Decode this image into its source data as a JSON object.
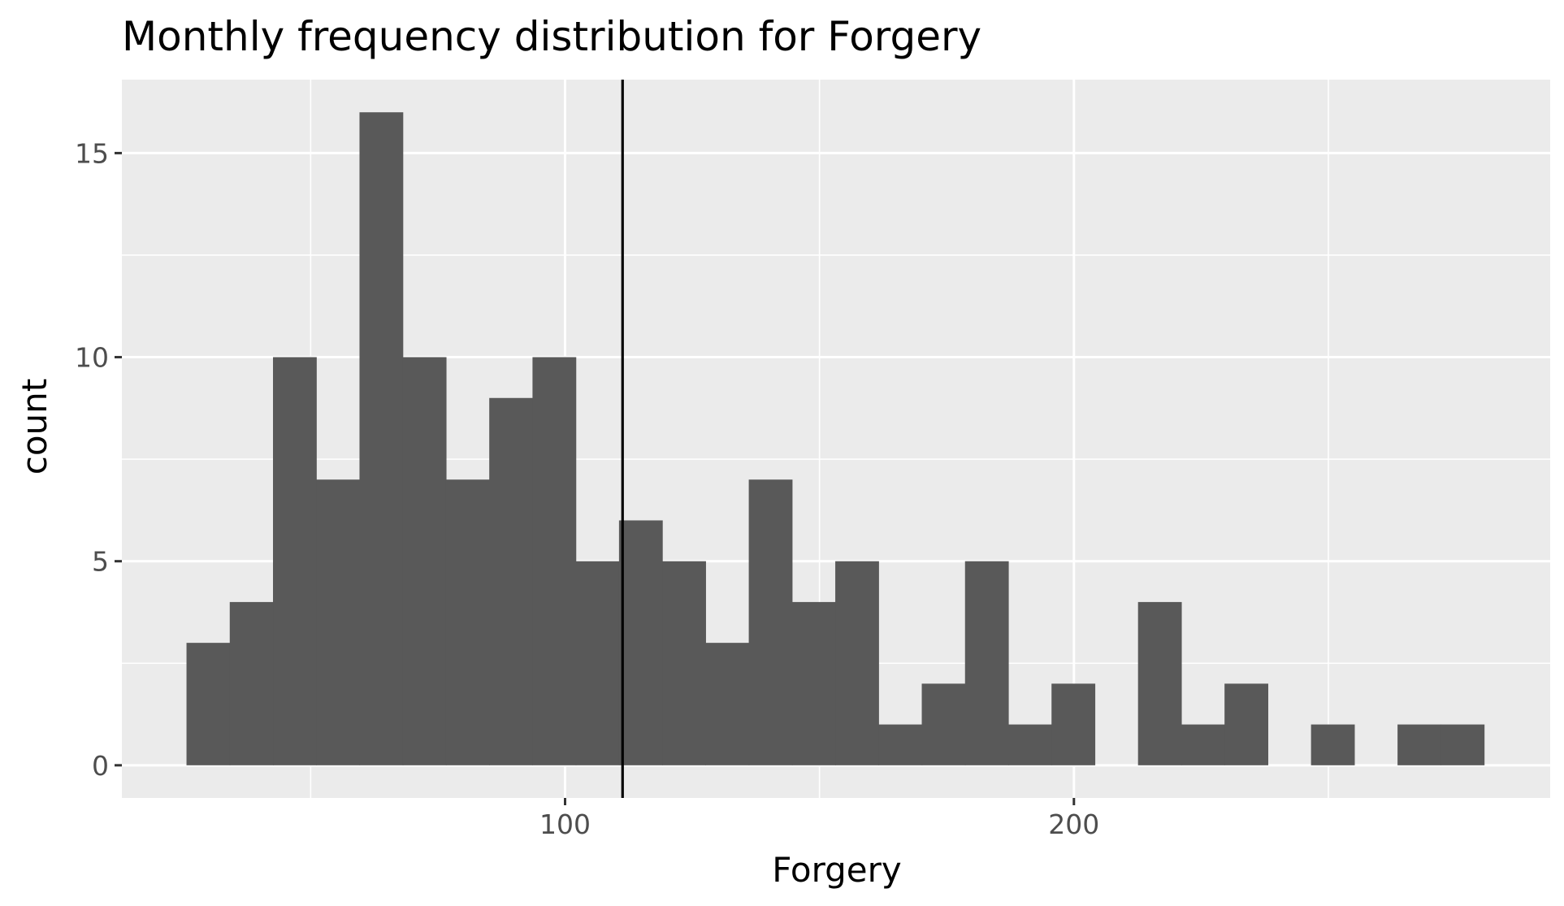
{
  "chart_data": {
    "type": "bar",
    "title": "Monthly frequency distribution for Forgery",
    "xlabel": "Forgery",
    "ylabel": "count",
    "bin_width": 8.5,
    "bins": [
      {
        "x0": 25.6,
        "count": 3
      },
      {
        "x0": 34.1,
        "count": 4
      },
      {
        "x0": 42.6,
        "count": 10
      },
      {
        "x0": 51.1,
        "count": 7
      },
      {
        "x0": 59.6,
        "count": 16
      },
      {
        "x0": 68.1,
        "count": 10
      },
      {
        "x0": 76.6,
        "count": 7
      },
      {
        "x0": 85.1,
        "count": 9
      },
      {
        "x0": 93.6,
        "count": 10
      },
      {
        "x0": 102.1,
        "count": 5
      },
      {
        "x0": 110.6,
        "count": 6
      },
      {
        "x0": 119.1,
        "count": 5
      },
      {
        "x0": 127.6,
        "count": 3
      },
      {
        "x0": 136.1,
        "count": 7
      },
      {
        "x0": 144.6,
        "count": 4
      },
      {
        "x0": 153.1,
        "count": 5
      },
      {
        "x0": 161.6,
        "count": 1
      },
      {
        "x0": 170.1,
        "count": 2
      },
      {
        "x0": 178.6,
        "count": 5
      },
      {
        "x0": 187.1,
        "count": 1
      },
      {
        "x0": 195.6,
        "count": 2
      },
      {
        "x0": 204.1,
        "count": 0
      },
      {
        "x0": 212.6,
        "count": 4
      },
      {
        "x0": 221.1,
        "count": 1
      },
      {
        "x0": 229.6,
        "count": 2
      },
      {
        "x0": 238.1,
        "count": 0
      },
      {
        "x0": 246.6,
        "count": 1
      },
      {
        "x0": 255.1,
        "count": 0
      },
      {
        "x0": 263.6,
        "count": 1
      },
      {
        "x0": 272.1,
        "count": 1
      }
    ],
    "vline_x": 111.3,
    "xlim": [
      12.9,
      293.6
    ],
    "ylim": [
      -0.8,
      16.8
    ],
    "x_ticks": [
      100,
      200
    ],
    "x_minor_ticks": [
      50,
      150,
      250
    ],
    "y_ticks": [
      0,
      5,
      10,
      15
    ],
    "y_minor_ticks": [
      2.5,
      7.5,
      12.5
    ],
    "grid": true,
    "colors": {
      "panel": "#ebebeb",
      "grid": "#ffffff",
      "bar": "#595959",
      "vline": "#000000",
      "tick": "#333333"
    }
  }
}
